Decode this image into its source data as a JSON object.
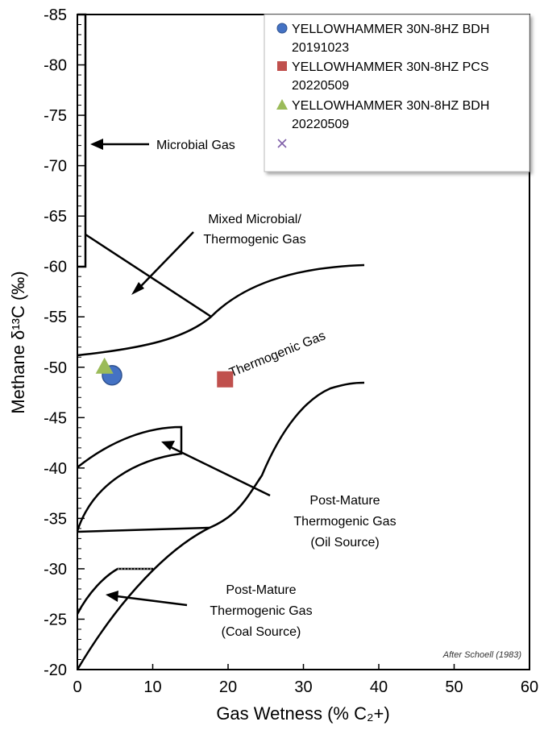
{
  "chart_data": {
    "type": "scatter",
    "title": "",
    "xlabel": "Gas Wetness (% C₂+)",
    "ylabel": "Methane δ¹³C (‰)",
    "xlim": [
      0,
      60
    ],
    "ylim": [
      -20,
      -85
    ],
    "x_ticks": [
      0,
      10,
      20,
      30,
      40,
      50,
      60
    ],
    "y_ticks": [
      -20,
      -25,
      -30,
      -35,
      -40,
      -45,
      -50,
      -55,
      -60,
      -65,
      -70,
      -75,
      -80,
      -85
    ],
    "grid": false,
    "legend_position": "top-right",
    "series": [
      {
        "name": "YELLOWHAMMER 30N-8HZ BDH 20191023",
        "marker": "circle",
        "color": "#4472C4",
        "points": [
          {
            "x": 4.6,
            "y": -49.2
          }
        ]
      },
      {
        "name": "YELLOWHAMMER 30N-8HZ PCS 20220509",
        "marker": "square",
        "color": "#C0504D",
        "points": [
          {
            "x": 19.6,
            "y": -48.8
          }
        ]
      },
      {
        "name": "YELLOWHAMMER 30N-8HZ BDH 20220509",
        "marker": "triangle",
        "color": "#9BBB59",
        "points": [
          {
            "x": 3.6,
            "y": -50.0
          }
        ]
      },
      {
        "name": "",
        "marker": "x",
        "color": "#7F5FA8",
        "points": []
      }
    ],
    "annotations": [
      {
        "text": "Microbial Gas"
      },
      {
        "text": "Mixed Microbial/"
      },
      {
        "text": "Thermogenic Gas"
      },
      {
        "text": "Thermogenic Gas"
      },
      {
        "text": "Post-Mature"
      },
      {
        "text": "Thermogenic Gas"
      },
      {
        "text": "(Oil Source)"
      },
      {
        "text": "Post-Mature"
      },
      {
        "text": "Thermogenic Gas"
      },
      {
        "text": "(Coal Source)"
      }
    ],
    "credit": "After Schoell (1983)"
  },
  "legend": {
    "lines": [
      [
        "YELLOWHAMMER 30N-8HZ BDH",
        "20191023"
      ],
      [
        "YELLOWHAMMER 30N-8HZ PCS",
        "20220509"
      ],
      [
        "YELLOWHAMMER 30N-8HZ BDH",
        "20220509"
      ]
    ]
  },
  "colors": {
    "axis": "#000000",
    "circle": "#4472C4",
    "square": "#C0504D",
    "triangle": "#9BBB59",
    "x_marker": "#7F5FA8"
  }
}
